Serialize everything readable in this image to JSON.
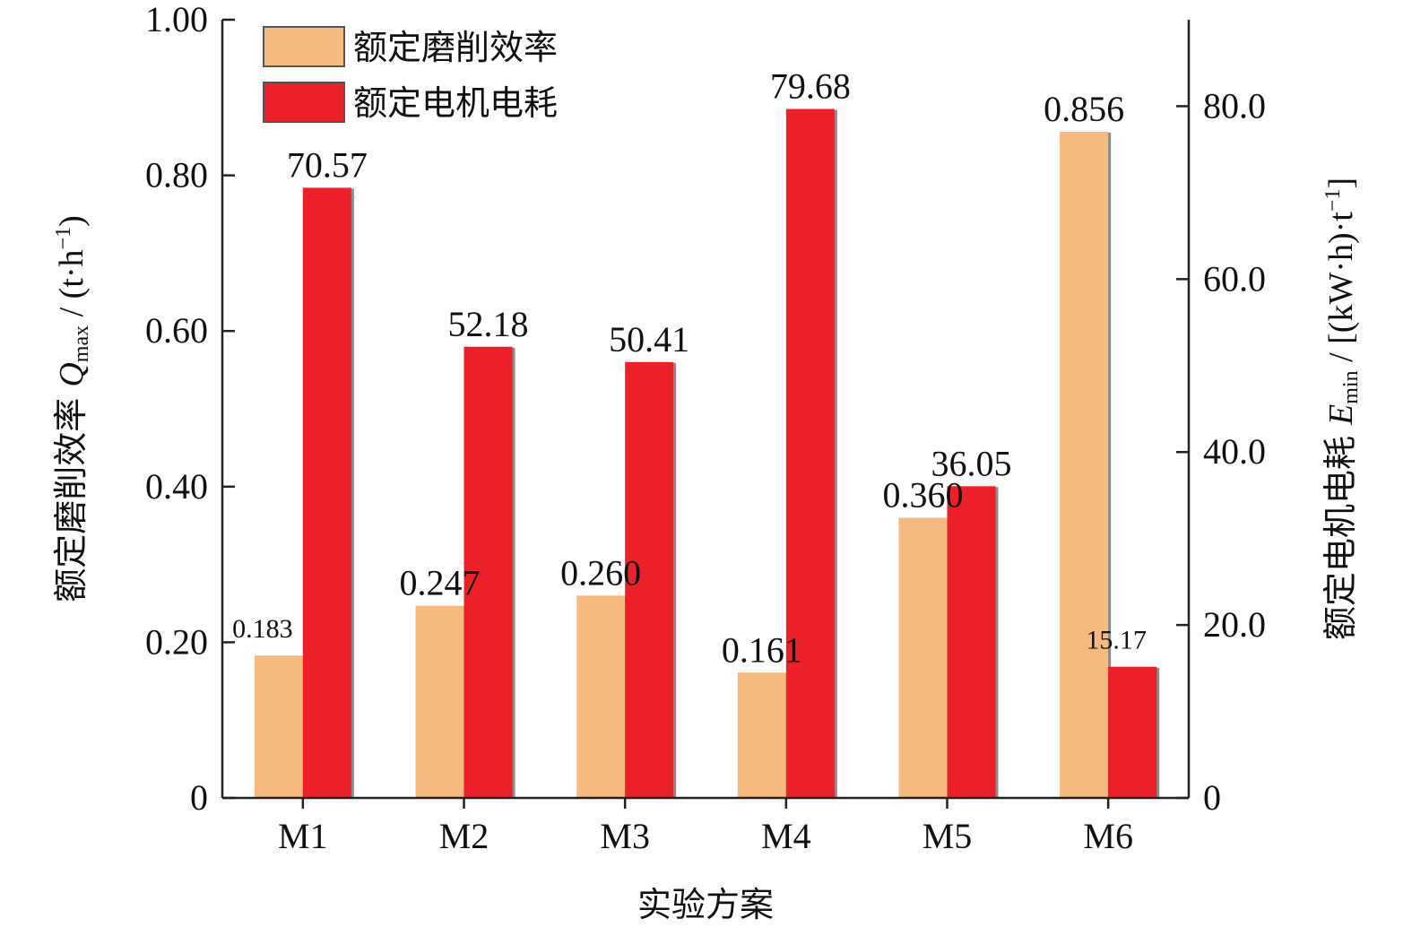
{
  "chart_data": {
    "type": "bar",
    "categories": [
      "M1",
      "M2",
      "M3",
      "M4",
      "M5",
      "M6"
    ],
    "series": [
      {
        "name": "额定磨削效率",
        "axis": "left",
        "color": "#F6B97E",
        "values": [
          0.183,
          0.247,
          0.26,
          0.161,
          0.36,
          0.856
        ],
        "labels": [
          "0.183",
          "0.247",
          "0.260",
          "0.161",
          "0.360",
          "0.856"
        ]
      },
      {
        "name": "额定电机电耗",
        "axis": "right",
        "color": "#EC2029",
        "values": [
          70.57,
          52.18,
          50.41,
          79.68,
          36.05,
          15.17
        ],
        "labels": [
          "70.57",
          "52.18",
          "50.41",
          "79.68",
          "36.05",
          "15.17"
        ]
      }
    ],
    "xlabel": "实验方案",
    "ylabel": {
      "text": "额定磨削效率 ",
      "symbol": "Q",
      "sub": "max",
      "unit_pre": " / (t·h",
      "unit_sup": "−1",
      "unit_post": ")"
    },
    "y2label": {
      "text": "额定电机电耗 ",
      "symbol": "E",
      "sub": "min",
      "unit_pre": " / [(kW·h)·t",
      "unit_sup": "−1",
      "unit_post": "]"
    },
    "ylim": [
      0,
      1.0
    ],
    "yticks": [
      "0",
      "0.20",
      "0.40",
      "0.60",
      "0.80",
      "1.00"
    ],
    "ytick_values": [
      0,
      0.2,
      0.4,
      0.6,
      0.8,
      1.0
    ],
    "y2lim": [
      0,
      90
    ],
    "y2ticks": [
      "0",
      "20.0",
      "40.0",
      "60.0",
      "80.0"
    ],
    "y2tick_values": [
      0,
      20,
      40,
      60,
      80
    ],
    "legend_position": "top-left",
    "grid": false
  }
}
